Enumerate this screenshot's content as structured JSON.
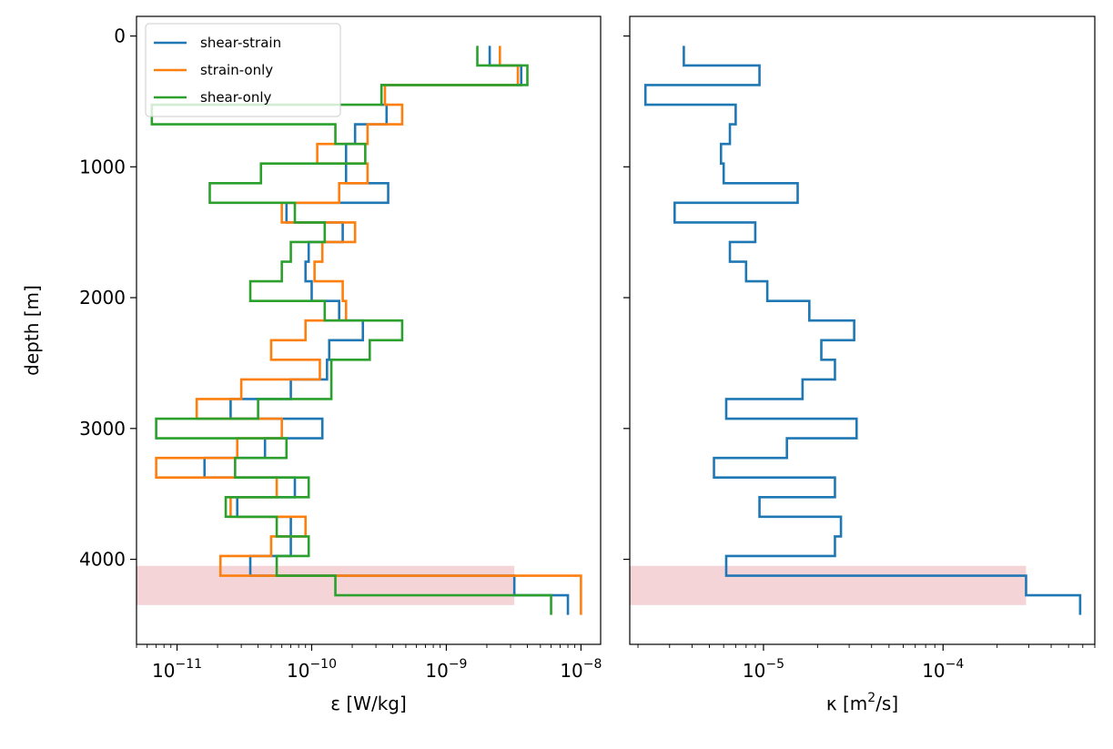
{
  "chart_data": [
    {
      "type": "line",
      "drawstyle": "steps",
      "xscale": "log",
      "xlim": [
        5e-12,
        1.4e-08
      ],
      "ylim": [
        4650,
        -150
      ],
      "ylabel": "depth [m]",
      "xlabel": "ε [W/kg]",
      "xtick_values": [
        1e-11,
        1e-10,
        1e-09,
        1e-08
      ],
      "xtick_labels": [
        {
          "b": "10",
          "e": "−11"
        },
        {
          "b": "10",
          "e": "−10"
        },
        {
          "b": "10",
          "e": "−9"
        },
        {
          "b": "10",
          "e": "−8"
        }
      ],
      "ytick_values": [
        0,
        1000,
        2000,
        3000,
        4000
      ],
      "ytick_labels": [
        "0",
        "1000",
        "2000",
        "3000",
        "4000"
      ],
      "legend": {
        "position": "upper left",
        "entries": [
          "shear-strain",
          "strain-only",
          "shear-only"
        ]
      },
      "shaded_band": {
        "depth_range": [
          4050,
          4350
        ],
        "x_range": [
          5e-12,
          3.2e-09
        ],
        "color": "#e8a0a8"
      },
      "depth_edges": [
        75,
        225,
        375,
        525,
        675,
        825,
        975,
        1125,
        1275,
        1425,
        1575,
        1725,
        1875,
        2025,
        2175,
        2325,
        2475,
        2625,
        2775,
        2925,
        3075,
        3225,
        3375,
        3525,
        3675,
        3825,
        3975,
        4125,
        4275,
        4425
      ],
      "series": [
        {
          "name": "shear-strain",
          "color": "#1f77b4",
          "values": [
            2.1e-09,
            3.6e-09,
            3.3e-10,
            3.6e-10,
            2.1e-10,
            1.8e-10,
            1.8e-10,
            3.7e-10,
            6.5e-11,
            1.7e-10,
            9.5e-11,
            9e-11,
            1e-10,
            1.6e-10,
            2.4e-10,
            1.35e-10,
            1.3e-10,
            7e-11,
            2.5e-11,
            1.2e-10,
            4.5e-11,
            1.6e-11,
            7.5e-11,
            2.8e-11,
            7e-11,
            7e-11,
            3.5e-11,
            3.2e-09,
            8e-09
          ]
        },
        {
          "name": "strain-only",
          "color": "#ff7f0e",
          "values": [
            2.5e-09,
            3.4e-09,
            3.5e-10,
            4.7e-10,
            2.6e-10,
            1.1e-10,
            2.6e-10,
            1.6e-10,
            6e-11,
            2.1e-10,
            1.2e-10,
            1.05e-10,
            1.7e-10,
            1.8e-10,
            9e-11,
            5e-11,
            1.15e-10,
            3e-11,
            1.4e-11,
            6e-11,
            2.8e-11,
            7e-12,
            5.5e-11,
            2.5e-11,
            9e-11,
            5e-11,
            2.1e-11,
            1e-08,
            1e-08
          ]
        },
        {
          "name": "shear-only",
          "color": "#2ca02c",
          "values": [
            1.7e-09,
            4e-09,
            3.3e-10,
            6.5e-12,
            1.5e-10,
            2.5e-10,
            4.2e-11,
            1.75e-11,
            7.5e-11,
            1.25e-10,
            7e-11,
            6e-11,
            3.5e-11,
            1.25e-10,
            4.7e-10,
            2.7e-10,
            1.4e-10,
            1.4e-10,
            4e-11,
            7e-12,
            6.5e-11,
            2.7e-11,
            9.5e-11,
            2.3e-11,
            5.5e-11,
            9.5e-11,
            5.5e-11,
            1.5e-10,
            6e-09
          ]
        }
      ]
    },
    {
      "type": "line",
      "drawstyle": "steps",
      "xscale": "log",
      "xlim": [
        1.8e-06,
        0.0007
      ],
      "ylim": [
        4650,
        -150
      ],
      "ylabel": "",
      "xlabel": "κ [m²/s]",
      "xtick_values": [
        1e-05,
        0.0001
      ],
      "xtick_labels": [
        {
          "b": "10",
          "e": "−5"
        },
        {
          "b": "10",
          "e": "−4"
        }
      ],
      "legend": null,
      "shaded_band": {
        "depth_range": [
          4050,
          4350
        ],
        "x_range": [
          1.8e-06,
          0.00029
        ],
        "color": "#e8a0a8"
      },
      "depth_edges": [
        75,
        225,
        375,
        525,
        675,
        825,
        975,
        1125,
        1275,
        1425,
        1575,
        1725,
        1875,
        2025,
        2175,
        2325,
        2475,
        2625,
        2775,
        2925,
        3075,
        3225,
        3375,
        3525,
        3675,
        3825,
        3975,
        4125,
        4275,
        4425
      ],
      "series": [
        {
          "name": "",
          "color": "#1f77b4",
          "values": [
            3.6e-06,
            9.5e-06,
            2.2e-06,
            7e-06,
            6.5e-06,
            5.8e-06,
            6e-06,
            1.55e-05,
            3.2e-06,
            9e-06,
            6.5e-06,
            8e-06,
            1.05e-05,
            1.8e-05,
            3.2e-05,
            2.1e-05,
            2.5e-05,
            1.65e-05,
            6.2e-06,
            3.3e-05,
            1.35e-05,
            5.3e-06,
            2.5e-05,
            9.5e-06,
            2.7e-05,
            2.5e-05,
            6.2e-06,
            0.00029,
            0.00058
          ]
        }
      ]
    }
  ]
}
